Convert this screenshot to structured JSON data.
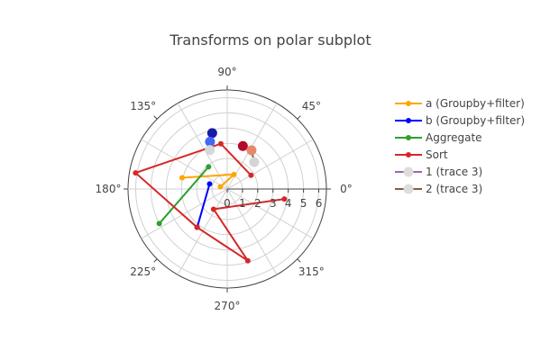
{
  "chart_data": {
    "type": "polar-line",
    "title": "Transforms on polar subplot",
    "radial_axis": {
      "range": [
        0,
        6.5
      ],
      "tick_labels": [
        "0",
        "1",
        "2",
        "3",
        "4",
        "5",
        "6"
      ],
      "tick_values": [
        0,
        1,
        2,
        3,
        4,
        5,
        6
      ]
    },
    "angular_axis": {
      "tick_labels": [
        "0°",
        "45°",
        "90°",
        "135°",
        "180°",
        "225°",
        "270°",
        "315°"
      ],
      "tick_values": [
        0,
        45,
        90,
        135,
        180,
        225,
        270,
        315
      ],
      "grid_step": 30
    },
    "grid": true,
    "legend_placement": "top-right",
    "series": [
      {
        "name": "a (Groupby+filter)",
        "color": "#ffa500",
        "marker": "dot",
        "points": [
          {
            "r": 0.47,
            "theta": 162
          },
          {
            "r": 1.05,
            "theta": 65
          },
          {
            "r": 3.05,
            "theta": 166
          }
        ]
      },
      {
        "name": "b (Groupby+filter)",
        "color": "#0000ff",
        "marker": "dot",
        "points": [
          {
            "r": 1.2,
            "theta": 164
          },
          {
            "r": 3.2,
            "theta": 232
          }
        ]
      },
      {
        "name": "Aggregate",
        "color": "#2ca02c",
        "marker": "dot",
        "points": [
          {
            "r": 1.9,
            "theta": 130
          },
          {
            "r": 5.0,
            "theta": 207
          }
        ]
      },
      {
        "name": "Sort",
        "color": "#d62728",
        "marker": "dot",
        "points": [
          {
            "r": 1.8,
            "theta": 30
          },
          {
            "r": 3.0,
            "theta": 98
          },
          {
            "r": 6.1,
            "theta": 170
          },
          {
            "r": 3.2,
            "theta": 232
          },
          {
            "r": 4.9,
            "theta": 286
          },
          {
            "r": 1.6,
            "theta": 236
          },
          {
            "r": 3.8,
            "theta": 350
          }
        ]
      },
      {
        "name": "1 (trace 3)",
        "color": "#9467bd",
        "marker": "large-gradient",
        "points": [
          {
            "r": 3.8,
            "theta": 105,
            "color": "#1a1aa8"
          },
          {
            "r": 3.3,
            "theta": 110,
            "color": "#4466f5"
          },
          {
            "r": 2.8,
            "theta": 114,
            "color": "#d8d8d8"
          }
        ]
      },
      {
        "name": "2 (trace 3)",
        "color": "#8c564b",
        "marker": "large-gradient",
        "points": [
          {
            "r": 3.0,
            "theta": 70,
            "color": "#b5082d"
          },
          {
            "r": 3.0,
            "theta": 58,
            "color": "#e8886a"
          },
          {
            "r": 2.5,
            "theta": 45,
            "color": "#d5d5d5"
          }
        ]
      }
    ]
  }
}
